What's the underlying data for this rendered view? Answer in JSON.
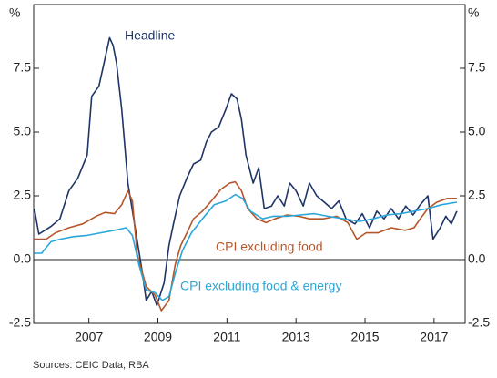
{
  "chart_data": {
    "type": "line",
    "ylabel": "%",
    "source": "Sources: CEIC Data; RBA",
    "xlim": [
      2005.4,
      2017.9
    ],
    "xticks": [
      2007,
      2009,
      2011,
      2013,
      2015,
      2017
    ],
    "ylim": [
      -2.5,
      10
    ],
    "yticks": [
      -2.5,
      {
        "value": 0,
        "label": "0.0"
      },
      2.5,
      {
        "value": 5,
        "label": "5.0"
      },
      7.5
    ],
    "grid": false,
    "series": [
      {
        "name": "Headline",
        "color": "#1f3566",
        "x": [
          2005.42,
          2005.55,
          2005.9,
          2006.16,
          2006.42,
          2006.68,
          2006.95,
          2007.08,
          2007.29,
          2007.47,
          2007.6,
          2007.7,
          2007.8,
          2007.95,
          2008.13,
          2008.34,
          2008.53,
          2008.66,
          2008.82,
          2008.97,
          2009.18,
          2009.32,
          2009.45,
          2009.63,
          2009.84,
          2010.03,
          2010.24,
          2010.4,
          2010.55,
          2010.76,
          2010.97,
          2011.13,
          2011.29,
          2011.42,
          2011.55,
          2011.76,
          2011.92,
          2012.08,
          2012.29,
          2012.47,
          2012.66,
          2012.82,
          2013.0,
          2013.21,
          2013.39,
          2013.6,
          2013.82,
          2014.03,
          2014.24,
          2014.45,
          2014.71,
          2014.92,
          2015.13,
          2015.34,
          2015.55,
          2015.76,
          2015.97,
          2016.18,
          2016.39,
          2016.6,
          2016.82,
          2016.97,
          2017.18,
          2017.34,
          2017.5,
          2017.66
        ],
        "values": [
          2.0,
          1.0,
          1.3,
          1.6,
          2.7,
          3.2,
          4.1,
          6.4,
          6.8,
          7.9,
          8.7,
          8.4,
          7.7,
          5.9,
          3.0,
          1.25,
          -0.35,
          -1.6,
          -1.25,
          -1.8,
          -0.9,
          0.55,
          1.4,
          2.5,
          3.2,
          3.75,
          3.9,
          4.6,
          5.0,
          5.2,
          5.9,
          6.5,
          6.3,
          5.5,
          4.1,
          3.0,
          3.6,
          2.0,
          2.1,
          2.5,
          2.1,
          3.0,
          2.7,
          2.1,
          3.0,
          2.5,
          2.25,
          2.0,
          2.3,
          1.6,
          1.4,
          1.8,
          1.25,
          1.9,
          1.6,
          2.0,
          1.6,
          2.1,
          1.75,
          2.15,
          2.5,
          0.8,
          1.25,
          1.7,
          1.4,
          1.9
        ]
      },
      {
        "name": "CPI excluding food",
        "color": "#b5562a",
        "x": [
          2005.42,
          2005.76,
          2006.03,
          2006.42,
          2006.82,
          2007.21,
          2007.47,
          2007.74,
          2007.95,
          2008.13,
          2008.26,
          2008.4,
          2008.66,
          2008.92,
          2009.1,
          2009.32,
          2009.5,
          2009.66,
          2009.84,
          2010.03,
          2010.29,
          2010.55,
          2010.82,
          2011.08,
          2011.24,
          2011.42,
          2011.6,
          2011.87,
          2012.13,
          2012.39,
          2012.74,
          2013.08,
          2013.39,
          2013.79,
          2014.18,
          2014.5,
          2014.76,
          2015.03,
          2015.37,
          2015.76,
          2016.16,
          2016.42,
          2016.6,
          2016.82,
          2017.08,
          2017.39,
          2017.66
        ],
        "values": [
          0.8,
          0.8,
          1.05,
          1.25,
          1.4,
          1.7,
          1.85,
          1.8,
          2.15,
          2.7,
          2.3,
          0.2,
          -1.05,
          -1.4,
          -2.0,
          -1.6,
          -0.2,
          0.55,
          1.05,
          1.6,
          1.9,
          2.3,
          2.75,
          3.0,
          3.05,
          2.7,
          2.0,
          1.6,
          1.45,
          1.6,
          1.75,
          1.7,
          1.6,
          1.6,
          1.7,
          1.45,
          0.8,
          1.05,
          1.05,
          1.25,
          1.15,
          1.25,
          1.6,
          2.0,
          2.25,
          2.4,
          2.4
        ]
      },
      {
        "name": "CPI excluding food & energy",
        "color": "#2aa6d9",
        "x": [
          2005.42,
          2005.63,
          2005.9,
          2006.16,
          2006.55,
          2006.95,
          2007.34,
          2007.74,
          2008.08,
          2008.26,
          2008.45,
          2008.66,
          2008.92,
          2009.13,
          2009.32,
          2009.5,
          2009.71,
          2009.97,
          2010.29,
          2010.63,
          2010.97,
          2011.24,
          2011.45,
          2011.68,
          2012.03,
          2012.34,
          2012.74,
          2013.13,
          2013.53,
          2013.92,
          2014.39,
          2014.84,
          2015.24,
          2015.63,
          2016.03,
          2016.42,
          2016.82,
          2017.21,
          2017.66
        ],
        "values": [
          0.25,
          0.25,
          0.7,
          0.8,
          0.9,
          0.95,
          1.05,
          1.15,
          1.25,
          0.95,
          -0.2,
          -1.2,
          -1.3,
          -1.6,
          -1.45,
          -0.55,
          0.35,
          1.05,
          1.6,
          2.15,
          2.3,
          2.55,
          2.4,
          1.9,
          1.6,
          1.7,
          1.7,
          1.75,
          1.8,
          1.7,
          1.6,
          1.5,
          1.6,
          1.75,
          1.8,
          1.9,
          2.0,
          2.15,
          2.25
        ]
      }
    ]
  }
}
